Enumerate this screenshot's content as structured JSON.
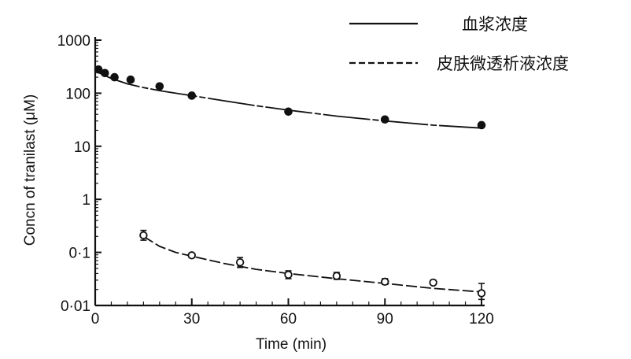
{
  "chart_data": {
    "type": "scatter",
    "title": "",
    "xlabel": "Time (min)",
    "ylabel": "Concn of tranilast (μM)",
    "xlim": [
      0,
      120
    ],
    "ylim": [
      0.01,
      1000
    ],
    "yscale": "log",
    "grid": false,
    "legend_placement": "top-right",
    "x_ticks": [
      0,
      30,
      60,
      90,
      120
    ],
    "x_tick_labels": [
      "0",
      "30",
      "60",
      "90",
      "120"
    ],
    "y_ticks": [
      0.01,
      0.1,
      1,
      10,
      100,
      1000
    ],
    "y_tick_labels": [
      "0·01",
      "0·1",
      "1",
      "10",
      "100",
      "1000"
    ],
    "series": [
      {
        "name": "血浆浓度",
        "line_style": "solid",
        "marker": "filled-circle",
        "color": "#111111",
        "x": [
          1,
          3,
          6,
          11,
          20,
          30,
          60,
          90,
          120
        ],
        "y": [
          280,
          240,
          200,
          180,
          135,
          90,
          45,
          32,
          25
        ],
        "fit_x": [
          0,
          2,
          5,
          10,
          15,
          20,
          25,
          30,
          40,
          50,
          60,
          75,
          90,
          105,
          120
        ],
        "fit_y": [
          260,
          230,
          190,
          150,
          128,
          112,
          100,
          90,
          72,
          58,
          48,
          37,
          30,
          25,
          22
        ]
      },
      {
        "name": "皮肤微透析液浓度",
        "line_style": "dashed",
        "marker": "open-circle",
        "color": "#111111",
        "x": [
          15,
          30,
          45,
          60,
          75,
          90,
          105,
          120
        ],
        "y": [
          0.21,
          0.088,
          0.065,
          0.038,
          0.036,
          0.028,
          0.027,
          0.017
        ],
        "err_low": [
          0.17,
          0.08,
          0.052,
          0.032,
          0.031,
          0.025,
          0.025,
          0.013
        ],
        "err_high": [
          0.26,
          0.096,
          0.08,
          0.045,
          0.042,
          0.032,
          0.03,
          0.026
        ],
        "fit_x": [
          15,
          20,
          25,
          30,
          40,
          50,
          60,
          75,
          90,
          105,
          120
        ],
        "fit_y": [
          0.2,
          0.13,
          0.1,
          0.085,
          0.062,
          0.048,
          0.04,
          0.032,
          0.026,
          0.021,
          0.018
        ]
      }
    ]
  }
}
